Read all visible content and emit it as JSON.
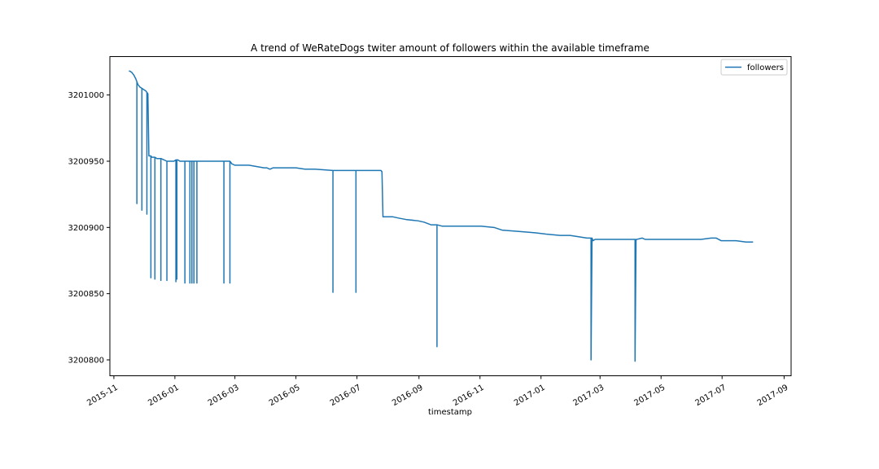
{
  "chart_data": {
    "type": "line",
    "title": "A trend of WeRateDogs twiter amount of followers within the available timeframe",
    "xlabel": "timestamp",
    "ylabel": "",
    "legend": {
      "position": "top-right",
      "entries": [
        "followers"
      ]
    },
    "grid": false,
    "xlim": [
      "2015-10-28",
      "2017-09-08"
    ],
    "ylim": [
      3200788,
      3201029
    ],
    "x_ticks": [
      "2015-11",
      "2016-01",
      "2016-03",
      "2016-05",
      "2016-07",
      "2016-09",
      "2016-11",
      "2017-01",
      "2017-03",
      "2017-05",
      "2017-07",
      "2017-09"
    ],
    "y_ticks": [
      3200800,
      3200850,
      3200900,
      3200950,
      3201000
    ],
    "series": [
      {
        "name": "followers",
        "color": "#1f77b4",
        "x": [
          "2015-11-16",
          "2015-11-17",
          "2015-11-19",
          "2015-11-21",
          "2015-11-23",
          "2015-11-24",
          "2015-11-24",
          "2015-11-24",
          "2015-11-25",
          "2015-11-27",
          "2015-11-29",
          "2015-11-29",
          "2015-11-29",
          "2015-12-01",
          "2015-12-03",
          "2015-12-04",
          "2015-12-04",
          "2015-12-04",
          "2015-12-05",
          "2015-12-06",
          "2015-12-08",
          "2015-12-08",
          "2015-12-08",
          "2015-12-09",
          "2015-12-10",
          "2015-12-10",
          "2015-12-12",
          "2015-12-12",
          "2015-12-12",
          "2015-12-14",
          "2015-12-16",
          "2015-12-18",
          "2015-12-18",
          "2015-12-18",
          "2015-12-21",
          "2015-12-24",
          "2015-12-24",
          "2015-12-24",
          "2015-12-26",
          "2015-12-31",
          "2016-01-02",
          "2016-01-02",
          "2016-01-02",
          "2016-01-03",
          "2016-01-03",
          "2016-01-03",
          "2016-01-04",
          "2016-01-06",
          "2016-01-08",
          "2016-01-11",
          "2016-01-11",
          "2016-01-11",
          "2016-01-13",
          "2016-01-16",
          "2016-01-16",
          "2016-01-16",
          "2016-01-18",
          "2016-01-18",
          "2016-01-18",
          "2016-01-19",
          "2016-01-20",
          "2016-01-20",
          "2016-01-20",
          "2016-01-21",
          "2016-01-23",
          "2016-01-23",
          "2016-01-23",
          "2016-01-25",
          "2016-02-05",
          "2016-02-19",
          "2016-02-19",
          "2016-02-19",
          "2016-02-21",
          "2016-02-25",
          "2016-02-25",
          "2016-02-25",
          "2016-02-27",
          "2016-03-01",
          "2016-03-15",
          "2016-03-30",
          "2016-04-02",
          "2016-04-05",
          "2016-04-08",
          "2016-04-20",
          "2016-05-01",
          "2016-05-10",
          "2016-05-20",
          "2016-06-07",
          "2016-06-07",
          "2016-06-07",
          "2016-06-15",
          "2016-06-30",
          "2016-06-30",
          "2016-06-30",
          "2016-07-10",
          "2016-07-25",
          "2016-07-26",
          "2016-07-27",
          "2016-08-06",
          "2016-08-12",
          "2016-08-19",
          "2016-08-31",
          "2016-09-06",
          "2016-09-13",
          "2016-09-19",
          "2016-09-19",
          "2016-09-19",
          "2016-09-24",
          "2016-10-10",
          "2016-11-02",
          "2016-11-15",
          "2016-11-23",
          "2016-12-10",
          "2016-12-26",
          "2017-01-06",
          "2017-01-20",
          "2017-01-30",
          "2017-02-16",
          "2017-02-20",
          "2017-02-20",
          "2017-02-21",
          "2017-02-22",
          "2017-02-24",
          "2017-03-10",
          "2017-03-25",
          "2017-04-05",
          "2017-04-05",
          "2017-04-06",
          "2017-04-07",
          "2017-04-12",
          "2017-04-15",
          "2017-05-06",
          "2017-05-20",
          "2017-06-01",
          "2017-06-10",
          "2017-06-20",
          "2017-06-25",
          "2017-06-30",
          "2017-07-15",
          "2017-07-25",
          "2017-08-01"
        ],
        "y": [
          3201018,
          3201018,
          3201017,
          3201015,
          3201012,
          3201010,
          3200918,
          3201010,
          3201008,
          3201006,
          3201005,
          3200913,
          3201005,
          3201004,
          3201003,
          3201002,
          3200910,
          3201002,
          3201001,
          3200954,
          3200954,
          3200862,
          3200954,
          3200953,
          3200953,
          3200953,
          3200953,
          3200861,
          3200953,
          3200952,
          3200952,
          3200952,
          3200860,
          3200952,
          3200951,
          3200950,
          3200860,
          3200950,
          3200950,
          3200950,
          3200951,
          3200859,
          3200951,
          3200951,
          3200861,
          3200951,
          3200951,
          3200950,
          3200950,
          3200950,
          3200858,
          3200950,
          3200950,
          3200950,
          3200858,
          3200950,
          3200950,
          3200858,
          3200950,
          3200950,
          3200950,
          3200858,
          3200950,
          3200950,
          3200950,
          3200858,
          3200950,
          3200950,
          3200950,
          3200950,
          3200858,
          3200950,
          3200950,
          3200950,
          3200858,
          3200950,
          3200948,
          3200947,
          3200947,
          3200945,
          3200945,
          3200944,
          3200945,
          3200945,
          3200945,
          3200944,
          3200944,
          3200943,
          3200851,
          3200943,
          3200943,
          3200943,
          3200851,
          3200943,
          3200943,
          3200943,
          3200942,
          3200908,
          3200908,
          3200907,
          3200906,
          3200905,
          3200904,
          3200902,
          3200902,
          3200810,
          3200902,
          3200901,
          3200901,
          3200901,
          3200900,
          3200898,
          3200897,
          3200896,
          3200895,
          3200894,
          3200894,
          3200892,
          3200892,
          3200800,
          3200892,
          3200890,
          3200891,
          3200891,
          3200891,
          3200891,
          3200799,
          3200891,
          3200891,
          3200892,
          3200891,
          3200891,
          3200891,
          3200891,
          3200891,
          3200892,
          3200892,
          3200890,
          3200890,
          3200889,
          3200889
        ]
      }
    ]
  }
}
